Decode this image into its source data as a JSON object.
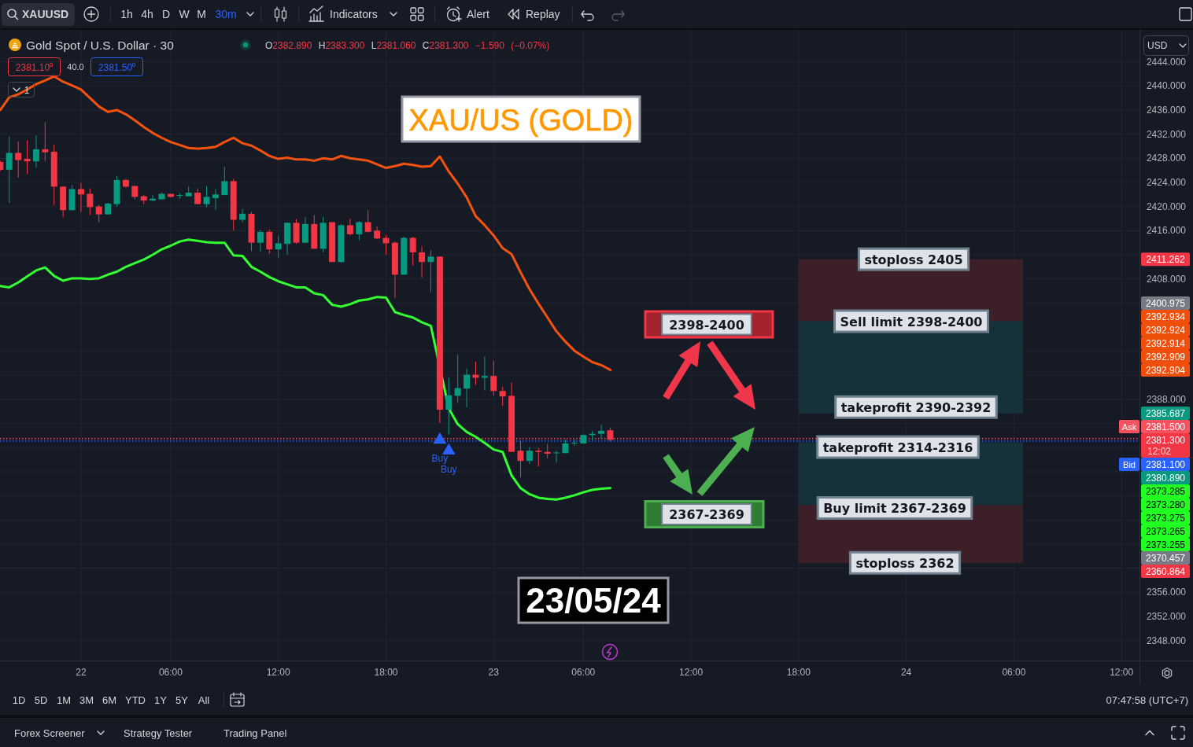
{
  "chart_data": [
    {
      "type": "other",
      "annotations": [
        "XAUUSD",
        "1h",
        "4h",
        "D",
        "W",
        "M",
        "30m",
        "Indicators",
        "Alert",
        "Replay"
      ]
    },
    {
      "type": "candlestick",
      "title": "XAU/US (GOLD)",
      "subtitle": "Gold Spot / U.S. Dollar · 30",
      "categories": [
        null,
        null,
        null,
        null,
        null,
        null,
        null,
        null,
        null,
        "22",
        null,
        null,
        null,
        null,
        null,
        null,
        null,
        null,
        null,
        "06:00",
        null,
        null,
        null,
        null,
        null,
        null,
        null,
        null,
        null,
        null,
        null,
        "12:00",
        null,
        null,
        null,
        null,
        null,
        null,
        null,
        null,
        null,
        null,
        null,
        "18:00",
        null,
        null,
        null,
        null,
        null,
        null,
        null,
        null,
        null,
        null,
        null,
        "23",
        null,
        null,
        null,
        null,
        null,
        null,
        null,
        null,
        null,
        "06:00",
        null,
        null,
        null,
        null,
        null,
        null,
        null,
        null,
        null,
        null,
        null,
        "12:00",
        null,
        null,
        null,
        null,
        null,
        null,
        null,
        null,
        null,
        null,
        null,
        "18:00",
        null,
        null,
        null,
        null,
        null,
        null,
        null,
        null,
        null,
        null,
        null,
        "24",
        null,
        null,
        null,
        null,
        null,
        null,
        null,
        null,
        null,
        null,
        null,
        "06:00",
        null,
        null,
        null,
        null,
        null,
        null,
        null,
        null,
        null,
        null,
        null,
        "12:00",
        null
      ],
      "ohlc": [
        [
          2427.4,
          2427.6,
          2425.9,
          2426.1
        ],
        [
          2426.1,
          2431.6,
          2420.6,
          2428.9
        ],
        [
          2428.9,
          2430.8,
          2424.8,
          2427.7
        ],
        [
          2427.9,
          2431.0,
          2425.4,
          2427.5
        ],
        [
          2427.5,
          2431.8,
          2426.4,
          2429.5
        ],
        [
          2429.5,
          2434.0,
          2427.5,
          2429.0
        ],
        [
          2429.1,
          2430.3,
          2420.2,
          2423.3
        ],
        [
          2423.3,
          2423.4,
          2418.2,
          2419.4
        ],
        [
          2419.4,
          2423.6,
          2419.4,
          2422.9
        ],
        [
          2422.9,
          2423.9,
          2419.1,
          2422.0
        ],
        [
          2422.1,
          2423.0,
          2418.6,
          2419.9
        ],
        [
          2420.0,
          2420.3,
          2417.4,
          2418.7
        ],
        [
          2418.7,
          2420.6,
          2418.7,
          2420.5
        ],
        [
          2420.4,
          2425.1,
          2420.0,
          2424.4
        ],
        [
          2424.4,
          2424.6,
          2423.1,
          2423.3
        ],
        [
          2423.4,
          2423.5,
          2421.2,
          2421.6
        ],
        [
          2421.7,
          2421.9,
          2420.4,
          2421.0
        ],
        [
          2421.0,
          2421.9,
          2420.9,
          2421.3
        ],
        [
          2421.2,
          2422.3,
          2421.2,
          2422.1
        ],
        [
          2422.1,
          2422.1,
          2421.5,
          2421.6
        ],
        [
          2421.8,
          2422.2,
          2421.3,
          2421.9
        ],
        [
          2421.7,
          2423.3,
          2421.7,
          2422.3
        ],
        [
          2422.3,
          2423.0,
          2420.4,
          2420.4
        ],
        [
          2420.4,
          2423.4,
          2419.9,
          2421.6
        ],
        [
          2421.4,
          2422.9,
          2419.4,
          2422.0
        ],
        [
          2421.9,
          2426.6,
          2421.9,
          2424.2
        ],
        [
          2424.2,
          2424.6,
          2416.0,
          2417.8
        ],
        [
          2417.8,
          2419.6,
          2417.4,
          2418.8
        ],
        [
          2418.8,
          2419.1,
          2412.6,
          2414.0
        ],
        [
          2414.0,
          2416.1,
          2412.5,
          2415.8
        ],
        [
          2415.8,
          2416.2,
          2412.2,
          2412.9
        ],
        [
          2412.9,
          2415.2,
          2411.5,
          2413.9
        ],
        [
          2413.8,
          2417.4,
          2412.0,
          2417.3
        ],
        [
          2417.3,
          2417.9,
          2413.8,
          2414.0
        ],
        [
          2414.0,
          2418.2,
          2413.9,
          2417.1
        ],
        [
          2417.1,
          2418.6,
          2413.0,
          2413.0
        ],
        [
          2413.0,
          2418.3,
          2412.4,
          2417.3
        ],
        [
          2417.4,
          2417.4,
          2410.8,
          2410.8
        ],
        [
          2410.8,
          2417.1,
          2410.7,
          2416.9
        ],
        [
          2416.9,
          2418.0,
          2415.2,
          2415.4
        ],
        [
          2415.4,
          2417.6,
          2414.4,
          2417.4
        ],
        [
          2417.4,
          2419.4,
          2415.7,
          2415.8
        ],
        [
          2416.0,
          2416.7,
          2414.6,
          2414.7
        ],
        [
          2414.8,
          2415.3,
          2412.0,
          2413.9
        ],
        [
          2414.0,
          2414.2,
          2404.8,
          2408.7
        ],
        [
          2408.7,
          2415.0,
          2408.7,
          2414.8
        ],
        [
          2414.8,
          2415.0,
          2410.2,
          2412.4
        ],
        [
          2412.4,
          2413.4,
          2408.2,
          2410.8
        ],
        [
          2410.8,
          2412.7,
          2405.8,
          2411.7
        ],
        [
          2411.7,
          2411.7,
          2384.1,
          2386.3
        ],
        [
          2386.3,
          2391.6,
          2382.2,
          2388.7
        ],
        [
          2388.6,
          2395.4,
          2387.4,
          2389.9
        ],
        [
          2389.8,
          2393.1,
          2386.7,
          2392.1
        ],
        [
          2392.1,
          2394.3,
          2390.4,
          2391.6
        ],
        [
          2391.6,
          2395.1,
          2389.5,
          2391.9
        ],
        [
          2391.9,
          2394.4,
          2388.6,
          2389.4
        ],
        [
          2389.4,
          2390.1,
          2386.9,
          2388.5
        ],
        [
          2388.6,
          2390.8,
          2379.3,
          2379.3
        ],
        [
          2379.5,
          2381.1,
          2375.1,
          2377.8
        ],
        [
          2377.8,
          2380.1,
          2377.3,
          2379.5
        ],
        [
          2379.5,
          2379.9,
          2376.9,
          2379.3
        ],
        [
          2379.3,
          2380.6,
          2378.2,
          2379.0
        ],
        [
          2379.1,
          2379.5,
          2377.5,
          2379.2
        ],
        [
          2379.1,
          2381.3,
          2379.1,
          2380.7
        ],
        [
          2380.7,
          2381.4,
          2380.3,
          2380.8
        ],
        [
          2380.7,
          2382.2,
          2380.7,
          2382.1
        ],
        [
          2382.1,
          2382.8,
          2381.2,
          2382.3
        ],
        [
          2382.3,
          2383.8,
          2381.5,
          2382.8
        ],
        [
          2382.89,
          2383.3,
          2381.06,
          2381.3
        ],
        null,
        null,
        null,
        null,
        null,
        null,
        null,
        null,
        null,
        null,
        null,
        null,
        null,
        null,
        null,
        null,
        null,
        null,
        null,
        null,
        null,
        null,
        null,
        null,
        null,
        null,
        null,
        null,
        null,
        null,
        null,
        null,
        null,
        null,
        null,
        null,
        null,
        null,
        null,
        null,
        null,
        null,
        null,
        null,
        null,
        null,
        null,
        null,
        null,
        null,
        null,
        null,
        null,
        null,
        null,
        null,
        null,
        null
      ],
      "series": [
        {
          "type": "line",
          "color": "#f5520f",
          "values": [
            2436.0,
            2438.1,
            2438.6,
            2439.4,
            2440.3,
            2440.9,
            2441.6,
            2440.7,
            2440.1,
            2439.4,
            2438.0,
            2436.6,
            2435.7,
            2436.0,
            2435.3,
            2434.3,
            2433.2,
            2432.2,
            2431.4,
            2430.7,
            2430.2,
            2429.7,
            2429.6,
            2429.7,
            2429.9,
            2430.7,
            2431.4,
            2430.5,
            2430.1,
            2429.3,
            2428.4,
            2427.9,
            2428.1,
            2427.8,
            2427.8,
            2427.6,
            2428.0,
            2427.8,
            2428.4,
            2428.0,
            2427.8,
            2427.6,
            2427.0,
            2426.4,
            2426.7,
            2427.1,
            2426.9,
            2426.6,
            2426.7,
            2428.3,
            2425.8,
            2423.8,
            2421.5,
            2418.4,
            2416.9,
            2415.2,
            2413.1,
            2412.1,
            2409.1,
            2406.3,
            2403.9,
            2401.6,
            2399.3,
            2397.6,
            2396.1,
            2395.1,
            2394.2,
            2393.7,
            2392.9,
            null,
            null,
            null,
            null,
            null,
            null,
            null,
            null,
            null,
            null,
            null,
            null,
            null,
            null,
            null,
            null,
            null,
            null,
            null,
            null,
            null,
            null,
            null,
            null,
            null,
            null,
            null,
            null,
            null,
            null,
            null,
            null,
            null,
            null,
            null,
            null,
            null,
            null,
            null,
            null,
            null,
            null,
            null,
            null,
            null,
            null,
            null,
            null,
            null,
            null,
            null,
            null,
            null,
            null,
            null,
            null,
            null,
            null
          ]
        },
        {
          "type": "line",
          "color": "#33ff33",
          "values": [
            2406.8,
            2406.6,
            2407.4,
            2408.4,
            2409.4,
            2409.9,
            2408.5,
            2407.7,
            2408.1,
            2408.1,
            2408.0,
            2408.1,
            2408.7,
            2409.2,
            2410.0,
            2410.6,
            2411.2,
            2412.0,
            2412.9,
            2413.5,
            2414.2,
            2414.5,
            2414.3,
            2414.1,
            2414.0,
            2414.0,
            2411.9,
            2411.8,
            2410.0,
            2409.2,
            2408.3,
            2407.6,
            2407.1,
            2406.6,
            2406.6,
            2405.6,
            2405.3,
            2403.7,
            2403.4,
            2403.8,
            2404.4,
            2404.6,
            2405.0,
            2404.9,
            2402.5,
            2402.0,
            2401.6,
            2400.8,
            2400.2,
            null,
            2386.5,
            2383.9,
            2382.6,
            2381.8,
            2380.8,
            2379.7,
            2379.3,
            2375.4,
            2373.3,
            2372.3,
            2371.7,
            2371.5,
            2371.4,
            2371.7,
            2372.1,
            2372.6,
            2373.0,
            2373.2,
            2373.3,
            null,
            null,
            null,
            null,
            null,
            null,
            null,
            null,
            null,
            null,
            null,
            null,
            null,
            null,
            null,
            null,
            null,
            null,
            null,
            null,
            null,
            null,
            null,
            null,
            null,
            null,
            null,
            null,
            null,
            null,
            null,
            null,
            null,
            null,
            null,
            null,
            null,
            null,
            null,
            null,
            null,
            null,
            null,
            null,
            null,
            null,
            null,
            null,
            null,
            null,
            null,
            null,
            null,
            null,
            null,
            null,
            null,
            null
          ]
        },
        {
          "type": "scatter",
          "name": "Buy",
          "color": "#2962ff",
          "marker": "triangle",
          "values": [
            null,
            null,
            null,
            null,
            null,
            null,
            null,
            null,
            null,
            null,
            null,
            null,
            null,
            null,
            null,
            null,
            null,
            null,
            null,
            null,
            null,
            null,
            null,
            null,
            null,
            null,
            null,
            null,
            null,
            null,
            null,
            null,
            null,
            null,
            null,
            null,
            null,
            null,
            null,
            null,
            null,
            null,
            null,
            null,
            null,
            null,
            null,
            null,
            null,
            2381.3,
            2379.5,
            null,
            null,
            null,
            null,
            null,
            null,
            null,
            null,
            null,
            null,
            null,
            null,
            null,
            null,
            null,
            null,
            null,
            null,
            null,
            null,
            null,
            null,
            null,
            null,
            null,
            null,
            null,
            null,
            null,
            null,
            null,
            null,
            null,
            null,
            null,
            null,
            null,
            null,
            null,
            null,
            null,
            null,
            null,
            null,
            null,
            null,
            null,
            null,
            null,
            null,
            null,
            null,
            null,
            null,
            null,
            null,
            null,
            null,
            null,
            null,
            null,
            null,
            null,
            null,
            null,
            null,
            null,
            null,
            null,
            null,
            null,
            null,
            null,
            null,
            null,
            null
          ]
        }
      ],
      "ylim": [
        2344.7,
        2449.3
      ],
      "yticks": [
        {
          "value": 2348,
          "label": "2348.000"
        },
        {
          "value": 2352,
          "label": "2352.000"
        },
        {
          "value": 2356,
          "label": "2356.000"
        },
        {
          "value": 2360,
          "label": null
        },
        {
          "value": 2364,
          "label": null
        },
        {
          "value": 2368,
          "label": null
        },
        {
          "value": 2372,
          "label": null
        },
        {
          "value": 2376,
          "label": null
        },
        {
          "value": 2380,
          "label": null
        },
        {
          "value": 2384,
          "label": null
        },
        {
          "value": 2388,
          "label": "2388.000"
        },
        {
          "value": 2392,
          "label": null
        },
        {
          "value": 2396,
          "label": null
        },
        {
          "value": 2400,
          "label": null
        },
        {
          "value": 2404,
          "label": null
        },
        {
          "value": 2408,
          "label": "2408.000"
        },
        {
          "value": 2412,
          "label": null
        },
        {
          "value": 2416,
          "label": "2416.000"
        },
        {
          "value": 2420,
          "label": "2420.000"
        },
        {
          "value": 2424,
          "label": "2424.000"
        },
        {
          "value": 2428,
          "label": "2428.000"
        },
        {
          "value": 2432,
          "label": "2432.000"
        },
        {
          "value": 2436,
          "label": "2436.000"
        },
        {
          "value": 2440,
          "label": "2440.000"
        },
        {
          "value": 2444,
          "label": "2444.000"
        }
      ],
      "grid": true,
      "ref_lines": [
        {
          "axis": "y",
          "value": 2381.5,
          "color": "#f7525f",
          "line_style": "dotted"
        },
        {
          "axis": "y",
          "value": 2381.1,
          "color": "#2962ff",
          "line_style": "dotted"
        }
      ],
      "bands": [
        {
          "axis": "y",
          "from": 2400.975,
          "to": 2411.262,
          "color": "#3d1f28"
        },
        {
          "axis": "y",
          "from": 2385.687,
          "to": 2400.975,
          "color": "#15323a"
        },
        {
          "axis": "y",
          "from": 2370.457,
          "to": 2380.89,
          "color": "#15323a"
        },
        {
          "axis": "y",
          "from": 2360.864,
          "to": 2370.457,
          "color": "#3d1f28"
        }
      ],
      "annotations": [
        {
          "text": "stoploss 2405",
          "y": 2411.262
        },
        {
          "text": "Sell limit 2398-2400",
          "y": 2400.975
        },
        "takeprofit 2390-2392",
        "takeprofit 2314-2316",
        {
          "text": "Buy limit 2367-2369",
          "y": 2370.0
        },
        {
          "text": "stoploss 2362",
          "y": 2360.9
        },
        "2398-2400",
        "2367-2369",
        "23/05/24",
        "O2382.890 H2383.300 L2381.060 C2381.300 −1.590 (−0.07%)",
        "2381.10⁰",
        "40.0",
        "2381.50⁰",
        "1",
        "USD",
        "Ask",
        "Bid",
        "12:02",
        "2411.262",
        "2400.975",
        "2392.934",
        "2392.924",
        "2392.914",
        "2392.909",
        "2392.904",
        "2385.687",
        "2381.500",
        "2381.300",
        "2381.100",
        "2380.890",
        "2373.285",
        "2373.280",
        "2373.275",
        "2373.265",
        "2373.255",
        "2370.457",
        "2360.864"
      ]
    },
    {
      "type": "other",
      "annotations": [
        "1D",
        "5D",
        "1M",
        "3M",
        "6M",
        "YTD",
        "1Y",
        "5Y",
        "All",
        "07:47:58 (UTC+7)",
        "Forex Screener",
        "Strategy Tester",
        "Trading Panel"
      ]
    }
  ]
}
